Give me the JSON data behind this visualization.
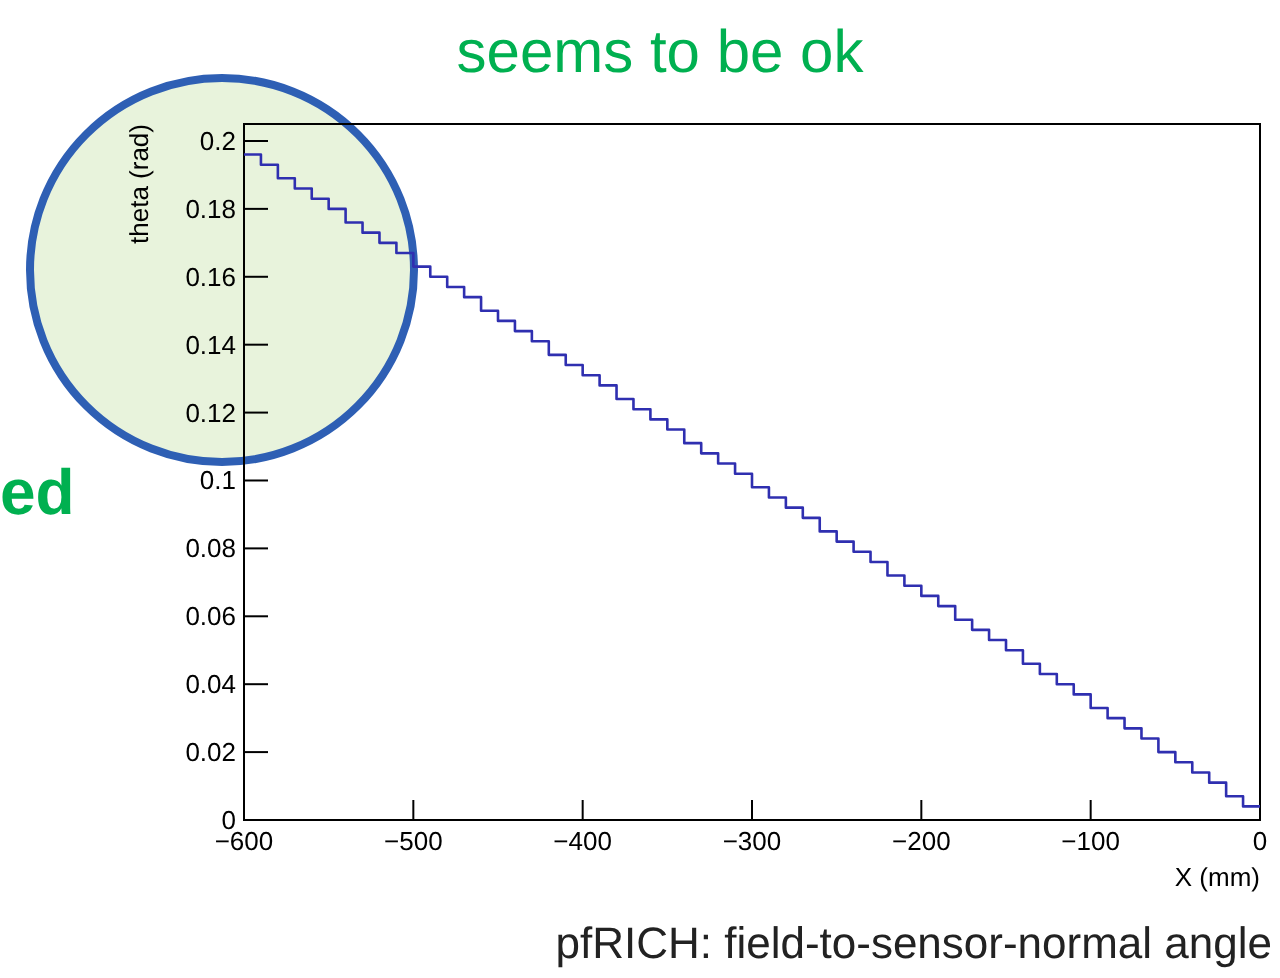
{
  "chart_data": {
    "type": "histogram",
    "xlabel": "X (mm)",
    "ylabel": "theta (rad)",
    "annotations": [
      "seems to be ok",
      "ed",
      "pfRICH: field-to-sensor-normal angle"
    ],
    "bins": [
      -600,
      -590,
      -580,
      -570,
      -560,
      -550,
      -540,
      -530,
      -520,
      -510,
      -500,
      -490,
      -480,
      -470,
      -460,
      -450,
      -440,
      -430,
      -420,
      -410,
      -400,
      -390,
      -380,
      -370,
      -360,
      -350,
      -340,
      -330,
      -320,
      -310,
      -300,
      -290,
      -280,
      -270,
      -260,
      -250,
      -240,
      -230,
      -220,
      -210,
      -200,
      -190,
      -180,
      -170,
      -160,
      -150,
      -140,
      -130,
      -120,
      -110,
      -100,
      -90,
      -80,
      -70,
      -60,
      -50,
      -40,
      -30,
      -20,
      -10,
      0
    ],
    "values": [
      0.196,
      0.193,
      0.189,
      0.186,
      0.183,
      0.18,
      0.176,
      0.173,
      0.17,
      0.167,
      0.163,
      0.16,
      0.157,
      0.154,
      0.15,
      0.147,
      0.144,
      0.141,
      0.137,
      0.134,
      0.131,
      0.128,
      0.124,
      0.121,
      0.118,
      0.115,
      0.111,
      0.108,
      0.105,
      0.102,
      0.098,
      0.095,
      0.092,
      0.089,
      0.085,
      0.082,
      0.079,
      0.076,
      0.072,
      0.069,
      0.066,
      0.063,
      0.059,
      0.056,
      0.053,
      0.05,
      0.046,
      0.043,
      0.04,
      0.037,
      0.033,
      0.03,
      0.027,
      0.024,
      0.02,
      0.017,
      0.014,
      0.011,
      0.007,
      0.004
    ],
    "color": "#2f2fb0",
    "xlim": [
      -600,
      0
    ],
    "xticks": [
      {
        "value": -600,
        "label": "−600"
      },
      {
        "value": -500,
        "label": "−500"
      },
      {
        "value": -400,
        "label": "−400"
      },
      {
        "value": -300,
        "label": "−300"
      },
      {
        "value": -200,
        "label": "−200"
      },
      {
        "value": -100,
        "label": "−100"
      },
      0
    ],
    "ylim": [
      0,
      0.205
    ],
    "yticks": [
      0,
      0.02,
      0.04,
      0.06,
      0.08,
      0.1,
      0.12,
      0.14,
      0.16,
      0.18,
      0.2
    ]
  }
}
